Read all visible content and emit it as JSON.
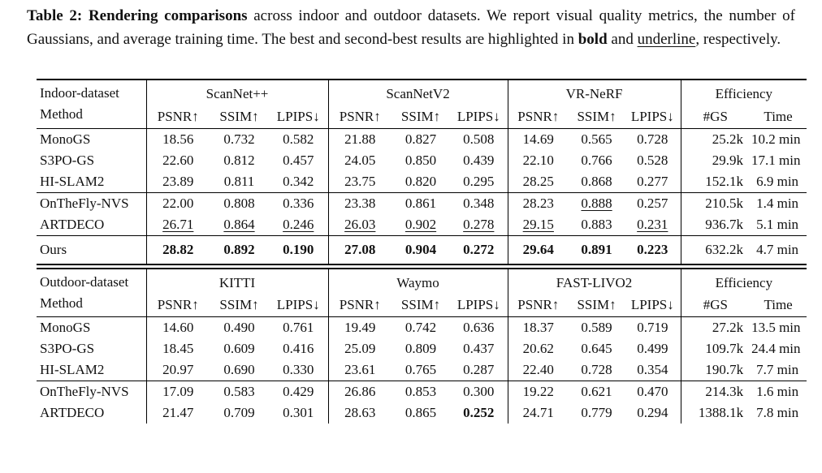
{
  "caption": {
    "label_bold": "Table 2: Rendering comparisons",
    "body_1": " across indoor and outdoor datasets. We report visual quality metrics, the number of Gaussians, and average training time. The best and second-best results are highlighted in ",
    "word_bold": "bold",
    "body_2": " and ",
    "word_underline": "underline",
    "tail": ", respectively."
  },
  "metric_headers": [
    "PSNR↑",
    "SSIM↑",
    "LPIPS↓"
  ],
  "efficiency_headers": [
    "#GS",
    "Time"
  ],
  "indoor_table": {
    "corner_line1": "Indoor-dataset",
    "corner_line2": "Method",
    "groups": [
      {
        "name": "ScanNet++",
        "subcols": [
          "PSNR↑",
          "SSIM↑",
          "LPIPS↓"
        ]
      },
      {
        "name": "ScanNetV2",
        "subcols": [
          "PSNR↑",
          "SSIM↑",
          "LPIPS↓"
        ]
      },
      {
        "name": "VR-NeRF",
        "subcols": [
          "PSNR↑",
          "SSIM↑",
          "LPIPS↓"
        ]
      },
      {
        "name": "Efficiency",
        "subcols": [
          "#GS",
          "Time"
        ]
      }
    ],
    "sections": [
      {
        "rows": [
          {
            "method": "MonoGS",
            "cells": [
              "18.56",
              "0.732",
              "0.582",
              "21.88",
              "0.827",
              "0.508",
              "14.69",
              "0.565",
              "0.728",
              "25.2k",
              "10.2 min"
            ],
            "fmt": [
              "",
              "",
              "",
              "",
              "",
              "",
              "",
              "",
              "",
              "",
              ""
            ]
          },
          {
            "method": "S3PO-GS",
            "cells": [
              "22.60",
              "0.812",
              "0.457",
              "24.05",
              "0.850",
              "0.439",
              "22.10",
              "0.766",
              "0.528",
              "29.9k",
              "17.1 min"
            ],
            "fmt": [
              "",
              "",
              "",
              "",
              "",
              "",
              "",
              "",
              "",
              "",
              ""
            ]
          },
          {
            "method": "HI-SLAM2",
            "cells": [
              "23.89",
              "0.811",
              "0.342",
              "23.75",
              "0.820",
              "0.295",
              "28.25",
              "0.868",
              "0.277",
              "152.1k",
              "6.9 min"
            ],
            "fmt": [
              "",
              "",
              "",
              "",
              "",
              "",
              "",
              "",
              "",
              "",
              ""
            ]
          }
        ]
      },
      {
        "rows": [
          {
            "method": "OnTheFly-NVS",
            "cells": [
              "22.00",
              "0.808",
              "0.336",
              "23.38",
              "0.861",
              "0.348",
              "28.23",
              "0.888",
              "0.257",
              "210.5k",
              "1.4 min"
            ],
            "fmt": [
              "",
              "",
              "",
              "",
              "",
              "",
              "",
              "u",
              "",
              "",
              ""
            ]
          },
          {
            "method": "ARTDECO",
            "cells": [
              "26.71",
              "0.864",
              "0.246",
              "26.03",
              "0.902",
              "0.278",
              "29.15",
              "0.883",
              "0.231",
              "936.7k",
              "5.1 min"
            ],
            "fmt": [
              "u",
              "u",
              "u",
              "u",
              "u",
              "u",
              "u",
              "",
              "u",
              "",
              ""
            ]
          }
        ]
      },
      {
        "tall": true,
        "rows": [
          {
            "method": "Ours",
            "cells": [
              "28.82",
              "0.892",
              "0.190",
              "27.08",
              "0.904",
              "0.272",
              "29.64",
              "0.891",
              "0.223",
              "632.2k",
              "4.7 min"
            ],
            "fmt": [
              "b",
              "b",
              "b",
              "b",
              "b",
              "b",
              "b",
              "b",
              "b",
              "",
              ""
            ]
          }
        ]
      }
    ]
  },
  "outdoor_table": {
    "corner_line1": "Outdoor-dataset",
    "corner_line2": "Method",
    "groups": [
      {
        "name": "KITTI",
        "subcols": [
          "PSNR↑",
          "SSIM↑",
          "LPIPS↓"
        ]
      },
      {
        "name": "Waymo",
        "subcols": [
          "PSNR↑",
          "SSIM↑",
          "LPIPS↓"
        ]
      },
      {
        "name": "FAST-LIVO2",
        "subcols": [
          "PSNR↑",
          "SSIM↑",
          "LPIPS↓"
        ]
      },
      {
        "name": "Efficiency",
        "subcols": [
          "#GS",
          "Time"
        ]
      }
    ],
    "sections": [
      {
        "rows": [
          {
            "method": "MonoGS",
            "cells": [
              "14.60",
              "0.490",
              "0.761",
              "19.49",
              "0.742",
              "0.636",
              "18.37",
              "0.589",
              "0.719",
              "27.2k",
              "13.5 min"
            ],
            "fmt": [
              "",
              "",
              "",
              "",
              "",
              "",
              "",
              "",
              "",
              "",
              ""
            ]
          },
          {
            "method": "S3PO-GS",
            "cells": [
              "18.45",
              "0.609",
              "0.416",
              "25.09",
              "0.809",
              "0.437",
              "20.62",
              "0.645",
              "0.499",
              "109.7k",
              "24.4 min"
            ],
            "fmt": [
              "",
              "",
              "",
              "",
              "",
              "",
              "",
              "",
              "",
              "",
              ""
            ]
          },
          {
            "method": "HI-SLAM2",
            "cells": [
              "20.97",
              "0.690",
              "0.330",
              "23.61",
              "0.765",
              "0.287",
              "22.40",
              "0.728",
              "0.354",
              "190.7k",
              "7.7 min"
            ],
            "fmt": [
              "",
              "",
              "",
              "",
              "",
              "",
              "",
              "",
              "",
              "",
              ""
            ]
          }
        ]
      },
      {
        "rows": [
          {
            "method": "OnTheFly-NVS",
            "cells": [
              "17.09",
              "0.583",
              "0.429",
              "26.86",
              "0.853",
              "0.300",
              "19.22",
              "0.621",
              "0.470",
              "214.3k",
              "1.6 min"
            ],
            "fmt": [
              "",
              "",
              "",
              "",
              "",
              "",
              "",
              "",
              "",
              "",
              ""
            ]
          },
          {
            "method": "ARTDECO",
            "cells": [
              "21.47",
              "0.709",
              "0.301",
              "28.63",
              "0.865",
              "0.252",
              "24.71",
              "0.779",
              "0.294",
              "1388.1k",
              "7.8 min"
            ],
            "fmt": [
              "",
              "",
              "",
              "",
              "",
              "b",
              "",
              "",
              "",
              "",
              ""
            ]
          }
        ]
      }
    ]
  }
}
